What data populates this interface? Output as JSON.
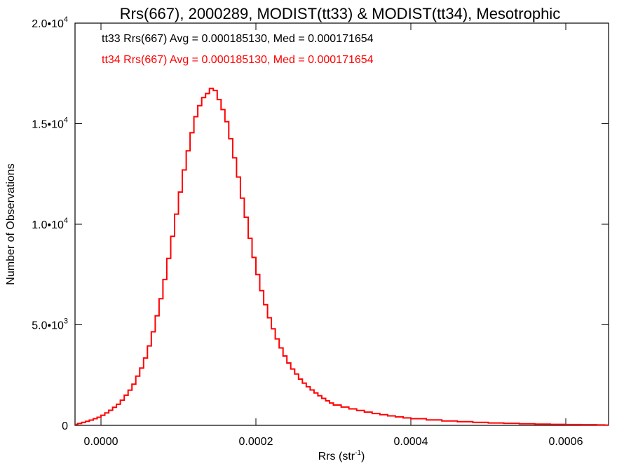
{
  "chart_data": {
    "type": "line",
    "title": "Rrs(667), 2000289, MODIST(tt33) & MODIST(tt34), Mesotrophic",
    "xlabel": "Rrs (str",
    "xlabel_sup": "-1",
    "xlabel_close": ")",
    "ylabel": "Number of Observations",
    "xlim": [
      -3.35e-05,
      0.0006552
    ],
    "ylim": [
      0,
      20000
    ],
    "x_ticks": [
      {
        "value": 0.0,
        "label": "0.0000"
      },
      {
        "value": 0.0002,
        "label": "0.0002"
      },
      {
        "value": 0.0004,
        "label": "0.0004"
      },
      {
        "value": 0.0006,
        "label": "0.0006"
      }
    ],
    "y_ticks": [
      {
        "value": 0,
        "label": "0",
        "exp": ""
      },
      {
        "value": 5000,
        "label": "5.0•10",
        "exp": "3"
      },
      {
        "value": 10000,
        "label": "1.0•10",
        "exp": "4"
      },
      {
        "value": 15000,
        "label": "1.5•10",
        "exp": "4"
      },
      {
        "value": 20000,
        "label": "2.0•10",
        "exp": "4"
      }
    ],
    "annotations": [
      {
        "text": "tt33 Rrs(667) Avg = 0.000185130, Med = 0.000171654",
        "color": "#000000"
      },
      {
        "text": "tt34 Rrs(667) Avg = 0.000185130, Med = 0.000171654",
        "color": "#ff0000"
      }
    ],
    "series": [
      {
        "name": "tt34 Rrs(667)",
        "color": "#ff0000",
        "style": "step",
        "x": [
          -3.35e-05,
          -3e-05,
          -2.5e-05,
          -2e-05,
          -1.5e-05,
          -1e-05,
          -5e-06,
          0.0,
          5e-06,
          1e-05,
          1.5e-05,
          2e-05,
          2.5e-05,
          3e-05,
          3.5e-05,
          4e-05,
          4.5e-05,
          5e-05,
          5.5e-05,
          6e-05,
          6.5e-05,
          7e-05,
          7.5e-05,
          8e-05,
          8.5e-05,
          9e-05,
          9.5e-05,
          0.0001,
          0.000105,
          0.00011,
          0.000115,
          0.00012,
          0.000125,
          0.00013,
          0.000135,
          0.00014,
          0.000145,
          0.00015,
          0.000155,
          0.00016,
          0.000165,
          0.00017,
          0.000175,
          0.00018,
          0.000185,
          0.00019,
          0.000195,
          0.0002,
          0.000205,
          0.00021,
          0.000215,
          0.00022,
          0.000225,
          0.00023,
          0.000235,
          0.00024,
          0.000245,
          0.00025,
          0.000255,
          0.00026,
          0.000265,
          0.00027,
          0.000275,
          0.00028,
          0.000285,
          0.00029,
          0.000295,
          0.0003,
          0.00031,
          0.00032,
          0.00033,
          0.00034,
          0.00035,
          0.00036,
          0.00037,
          0.00038,
          0.00039,
          0.0004,
          0.00042,
          0.00044,
          0.00046,
          0.00048,
          0.0005,
          0.00052,
          0.00054,
          0.00056,
          0.00058,
          0.0006,
          0.00062,
          0.00064,
          0.00065
        ],
        "values": [
          50,
          90,
          150,
          200,
          260,
          330,
          400,
          500,
          620,
          750,
          900,
          1050,
          1250,
          1500,
          1750,
          2050,
          2450,
          2850,
          3350,
          3950,
          4650,
          5450,
          6300,
          7250,
          8300,
          9400,
          10500,
          11600,
          12700,
          13650,
          14550,
          15350,
          15900,
          16300,
          16500,
          16750,
          16650,
          16200,
          15700,
          15100,
          14250,
          13300,
          12350,
          11300,
          10350,
          9300,
          8350,
          7500,
          6700,
          6000,
          5350,
          4800,
          4300,
          3850,
          3450,
          3100,
          2800,
          2550,
          2300,
          2100,
          1920,
          1760,
          1610,
          1470,
          1340,
          1220,
          1110,
          1010,
          910,
          820,
          740,
          660,
          590,
          530,
          470,
          420,
          370,
          330,
          270,
          220,
          180,
          150,
          120,
          100,
          80,
          60,
          50,
          40,
          30,
          20,
          15
        ]
      }
    ]
  }
}
